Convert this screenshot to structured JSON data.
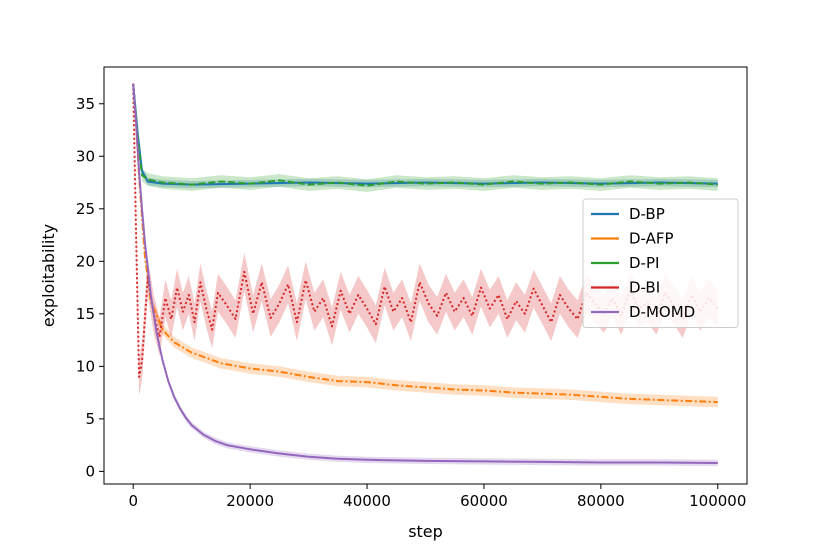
{
  "chart_data": {
    "type": "line",
    "title": "",
    "xlabel": "step",
    "ylabel": "exploitability",
    "xlim": [
      -5000,
      105000
    ],
    "ylim": [
      -1.2,
      38.5
    ],
    "xticks": [
      0,
      20000,
      40000,
      60000,
      80000,
      100000
    ],
    "yticks": [
      0,
      5,
      10,
      15,
      20,
      25,
      30,
      35
    ],
    "xtick_labels": [
      "0",
      "20000",
      "40000",
      "60000",
      "80000",
      "100000"
    ],
    "ytick_labels": [
      "0",
      "5",
      "10",
      "15",
      "20",
      "25",
      "30",
      "35"
    ],
    "grid": false,
    "legend_position": "center-right",
    "series": [
      {
        "name": "D-BP",
        "color": "#1f77b4",
        "style": "solid",
        "band": 0.35,
        "x": [
          0,
          800,
          1500,
          2500,
          5000,
          10000,
          20000,
          30000,
          40000,
          50000,
          60000,
          70000,
          80000,
          90000,
          100000
        ],
        "y": [
          36.9,
          32.0,
          28.6,
          27.6,
          27.4,
          27.3,
          27.4,
          27.5,
          27.4,
          27.5,
          27.4,
          27.5,
          27.4,
          27.5,
          27.4
        ]
      },
      {
        "name": "D-AFP",
        "color": "#ff7f0e",
        "style": "dashdot",
        "band": 0.5,
        "x": [
          0,
          500,
          1000,
          2000,
          3000,
          5000,
          7000,
          10000,
          15000,
          20000,
          25000,
          30000,
          35000,
          40000,
          45000,
          50000,
          55000,
          60000,
          65000,
          70000,
          75000,
          80000,
          85000,
          90000,
          95000,
          100000
        ],
        "y": [
          36.9,
          33.0,
          28.0,
          20.5,
          16.2,
          13.5,
          12.3,
          11.3,
          10.3,
          9.8,
          9.5,
          9.0,
          8.6,
          8.5,
          8.2,
          8.0,
          7.8,
          7.7,
          7.5,
          7.4,
          7.3,
          7.1,
          6.9,
          6.8,
          6.7,
          6.6
        ]
      },
      {
        "name": "D-PI",
        "color": "#2ca02c",
        "style": "dashed",
        "band": 0.6,
        "x": [
          0,
          800,
          1500,
          2500,
          5000,
          10000,
          15000,
          20000,
          25000,
          30000,
          35000,
          40000,
          45000,
          50000,
          55000,
          60000,
          65000,
          70000,
          75000,
          80000,
          85000,
          90000,
          95000,
          100000
        ],
        "y": [
          36.9,
          31.5,
          28.2,
          27.8,
          27.5,
          27.3,
          27.6,
          27.4,
          27.7,
          27.3,
          27.5,
          27.2,
          27.6,
          27.4,
          27.5,
          27.3,
          27.6,
          27.4,
          27.5,
          27.3,
          27.6,
          27.4,
          27.5,
          27.3
        ]
      },
      {
        "name": "D-BI",
        "color": "#d62728",
        "style": "dotted",
        "band": 1.8,
        "x": [
          0,
          500,
          1000,
          1500,
          2500,
          3500,
          4500,
          5500,
          6500,
          7500,
          8500,
          9500,
          10500,
          11500,
          12500,
          13500,
          14500,
          16000,
          17500,
          19000,
          20500,
          22000,
          23500,
          25000,
          26500,
          28000,
          29500,
          31000,
          32500,
          34000,
          35500,
          37000,
          38500,
          40000,
          41500,
          43000,
          44500,
          46000,
          47500,
          49000,
          50500,
          52000,
          53500,
          55000,
          56500,
          58000,
          59500,
          61000,
          62500,
          64000,
          65500,
          67000,
          68500,
          70000,
          71500,
          73000,
          74500,
          76000,
          77500,
          79000,
          80500,
          82000,
          83500,
          85000,
          86500,
          88000,
          89500,
          91000,
          92500,
          94000,
          95500,
          97000,
          98500,
          100000
        ],
        "y": [
          36.9,
          22.0,
          9.0,
          10.5,
          18.5,
          15.0,
          12.8,
          16.5,
          14.5,
          17.5,
          15.2,
          16.8,
          14.2,
          18.0,
          15.5,
          13.5,
          17.0,
          15.8,
          14.5,
          19.0,
          15.0,
          18.0,
          14.6,
          16.0,
          17.8,
          14.2,
          18.2,
          15.2,
          16.5,
          13.8,
          17.2,
          15.0,
          16.8,
          15.5,
          14.0,
          17.6,
          15.2,
          16.5,
          14.2,
          18.0,
          16.0,
          14.8,
          17.0,
          15.2,
          16.5,
          14.8,
          17.5,
          15.5,
          16.8,
          14.5,
          16.2,
          15.0,
          17.4,
          15.8,
          14.2,
          16.8,
          15.5,
          14.5,
          17.0,
          16.0,
          15.0,
          16.5,
          14.8,
          17.2,
          15.5,
          16.0,
          14.8,
          17.0,
          15.8,
          14.5,
          16.8,
          15.2,
          16.5,
          15.5
        ]
      },
      {
        "name": "D-MOMD",
        "color": "#9467bd",
        "style": "solid",
        "band": 0.3,
        "x": [
          0,
          500,
          1000,
          1500,
          2000,
          3000,
          4000,
          5000,
          6000,
          7000,
          8000,
          9000,
          10000,
          12000,
          14000,
          16000,
          18000,
          20000,
          25000,
          30000,
          35000,
          40000,
          50000,
          60000,
          70000,
          80000,
          90000,
          100000
        ],
        "y": [
          36.9,
          33.0,
          28.5,
          25.0,
          21.8,
          16.8,
          13.2,
          10.6,
          8.6,
          7.1,
          6.0,
          5.1,
          4.4,
          3.5,
          2.9,
          2.5,
          2.3,
          2.1,
          1.7,
          1.4,
          1.2,
          1.1,
          1.0,
          0.95,
          0.9,
          0.85,
          0.85,
          0.8
        ]
      }
    ]
  }
}
